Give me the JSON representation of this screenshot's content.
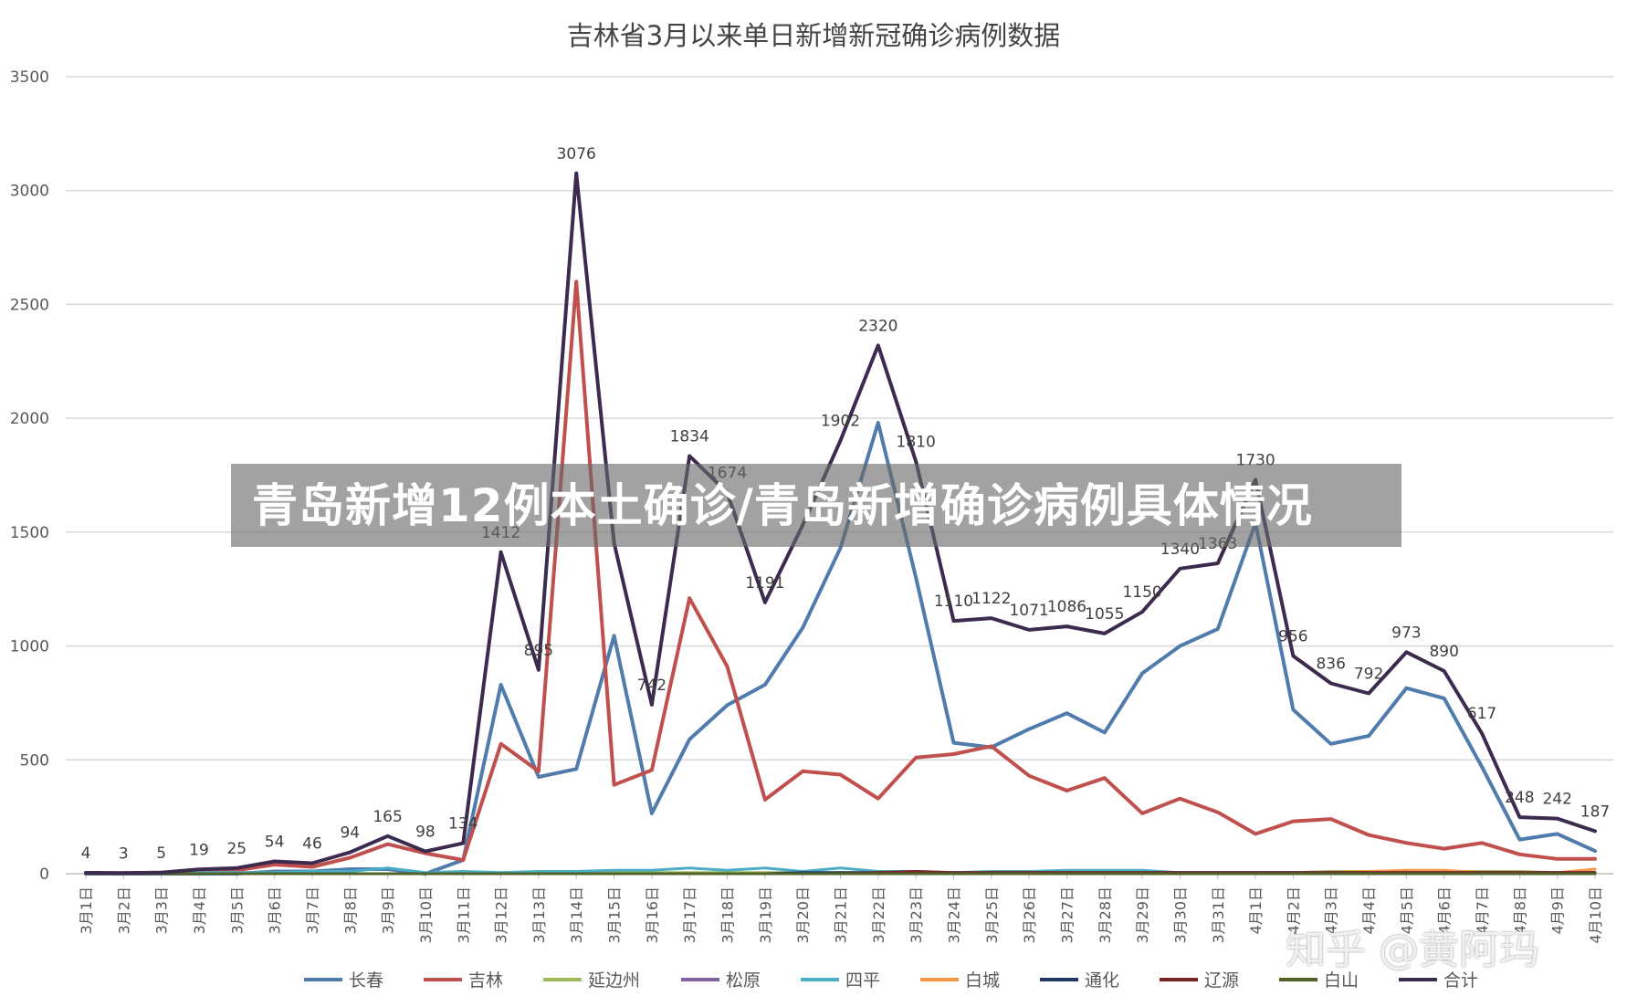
{
  "banner": {
    "text": "青岛新增12例本土确诊/青岛新增确诊病例具体情况"
  },
  "watermark": {
    "text": "知乎 @黄阿玛"
  },
  "chart_data": {
    "type": "line",
    "title": "吉林省3月以来单日新增新冠确诊病例数据",
    "xlabel": "",
    "ylabel": "",
    "ylim": [
      0,
      3500
    ],
    "yticks": [
      0,
      500,
      1000,
      1500,
      2000,
      2500,
      3000,
      3500
    ],
    "grid": true,
    "legend_position": "bottom",
    "categories": [
      "3月1日",
      "3月2日",
      "3月3日",
      "3月4日",
      "3月5日",
      "3月6日",
      "3月7日",
      "3月8日",
      "3月9日",
      "3月10日",
      "3月11日",
      "3月12日",
      "3月13日",
      "3月14日",
      "3月15日",
      "3月16日",
      "3月17日",
      "3月18日",
      "3月19日",
      "3月20日",
      "3月21日",
      "3月22日",
      "3月23日",
      "3月24日",
      "3月25日",
      "3月26日",
      "3月27日",
      "3月28日",
      "3月29日",
      "3月30日",
      "3月31日",
      "4月1日",
      "4月2日",
      "4月3日",
      "4月4日",
      "4月5日",
      "4月6日",
      "4月7日",
      "4月8日",
      "4月9日",
      "4月10日"
    ],
    "series": [
      {
        "name": "长春",
        "color": "#4f7cac",
        "values": [
          0,
          0,
          0,
          0,
          0,
          10,
          10,
          20,
          20,
          0,
          60,
          830,
          425,
          460,
          1045,
          265,
          590,
          740,
          830,
          1080,
          1430,
          1980,
          1300,
          575,
          555,
          635,
          705,
          620,
          880,
          1000,
          1075,
          1540,
          720,
          570,
          605,
          815,
          770,
          470,
          150,
          175,
          100
        ]
      },
      {
        "name": "吉林",
        "color": "#c0504d",
        "values": [
          4,
          3,
          5,
          10,
          15,
          40,
          30,
          70,
          130,
          90,
          60,
          570,
          450,
          2600,
          390,
          455,
          1210,
          910,
          325,
          450,
          435,
          330,
          510,
          525,
          560,
          430,
          365,
          420,
          265,
          330,
          270,
          175,
          230,
          240,
          170,
          135,
          110,
          135,
          85,
          65,
          65
        ]
      },
      {
        "name": "延边州",
        "color": "#9bbb59",
        "values": [
          0,
          0,
          0,
          0,
          0,
          0,
          0,
          0,
          0,
          0,
          0,
          5,
          5,
          5,
          5,
          5,
          5,
          5,
          5,
          5,
          5,
          5,
          5,
          5,
          5,
          5,
          5,
          5,
          5,
          5,
          5,
          5,
          5,
          10,
          10,
          10,
          10,
          10,
          10,
          5,
          5
        ]
      },
      {
        "name": "松原",
        "color": "#8064a2",
        "values": [
          0,
          0,
          0,
          0,
          0,
          0,
          0,
          0,
          0,
          0,
          0,
          0,
          0,
          0,
          0,
          0,
          0,
          0,
          0,
          0,
          0,
          0,
          0,
          0,
          0,
          0,
          0,
          0,
          0,
          0,
          0,
          0,
          0,
          0,
          0,
          0,
          0,
          0,
          0,
          0,
          0
        ]
      },
      {
        "name": "四平",
        "color": "#4bacc6",
        "values": [
          0,
          0,
          0,
          5,
          5,
          5,
          10,
          10,
          25,
          5,
          10,
          5,
          10,
          10,
          15,
          15,
          25,
          15,
          25,
          10,
          25,
          10,
          10,
          5,
          10,
          10,
          15,
          15,
          15,
          5,
          5,
          5,
          5,
          5,
          5,
          5,
          5,
          5,
          5,
          5,
          5
        ]
      },
      {
        "name": "白城",
        "color": "#f79646",
        "values": [
          0,
          0,
          0,
          0,
          0,
          0,
          0,
          0,
          0,
          0,
          0,
          0,
          0,
          0,
          0,
          0,
          0,
          0,
          0,
          0,
          0,
          0,
          0,
          0,
          0,
          0,
          0,
          0,
          0,
          0,
          0,
          0,
          0,
          5,
          10,
          15,
          15,
          5,
          5,
          5,
          20
        ]
      },
      {
        "name": "通化",
        "color": "#1f3864",
        "values": [
          0,
          0,
          0,
          0,
          0,
          0,
          0,
          0,
          0,
          0,
          0,
          0,
          0,
          0,
          0,
          0,
          0,
          0,
          0,
          5,
          5,
          5,
          5,
          5,
          5,
          5,
          5,
          5,
          5,
          5,
          5,
          5,
          5,
          5,
          5,
          5,
          5,
          5,
          5,
          5,
          5
        ]
      },
      {
        "name": "辽源",
        "color": "#7b2424",
        "values": [
          0,
          0,
          0,
          0,
          0,
          0,
          0,
          0,
          0,
          0,
          0,
          0,
          0,
          0,
          0,
          0,
          0,
          0,
          0,
          0,
          0,
          5,
          10,
          5,
          5,
          5,
          5,
          5,
          5,
          5,
          5,
          5,
          5,
          5,
          5,
          5,
          5,
          5,
          5,
          5,
          5
        ]
      },
      {
        "name": "白山",
        "color": "#4f6228",
        "values": [
          0,
          0,
          0,
          0,
          0,
          0,
          0,
          0,
          0,
          0,
          0,
          0,
          0,
          0,
          0,
          0,
          0,
          0,
          0,
          0,
          0,
          0,
          0,
          0,
          0,
          0,
          0,
          0,
          0,
          0,
          0,
          0,
          0,
          0,
          0,
          0,
          0,
          0,
          0,
          0,
          0
        ]
      },
      {
        "name": "合计",
        "color": "#3d2b4f",
        "values": [
          4,
          3,
          5,
          19,
          25,
          54,
          46,
          94,
          165,
          98,
          134,
          1412,
          895,
          3076,
          1452,
          742,
          1834,
          1674,
          1191,
          1531,
          1902,
          2320,
          1810,
          1110,
          1122,
          1071,
          1086,
          1055,
          1150,
          1340,
          1363,
          1730,
          956,
          836,
          792,
          973,
          890,
          617,
          248,
          242,
          187
        ],
        "data_labels": [
          "4",
          "3",
          "5",
          "19",
          "25",
          "54",
          "46",
          "94",
          "165",
          "98",
          "134",
          "1412",
          "895",
          "3076",
          "",
          "742",
          "1834",
          "1674",
          "1191",
          "",
          "1902",
          "2320",
          "1810",
          "1110",
          "1122",
          "1071",
          "1086",
          "1055",
          "1150",
          "1340",
          "1363",
          "1730",
          "956",
          "836",
          "792",
          "973",
          "890",
          "617",
          "248",
          "242",
          "187"
        ]
      }
    ]
  }
}
